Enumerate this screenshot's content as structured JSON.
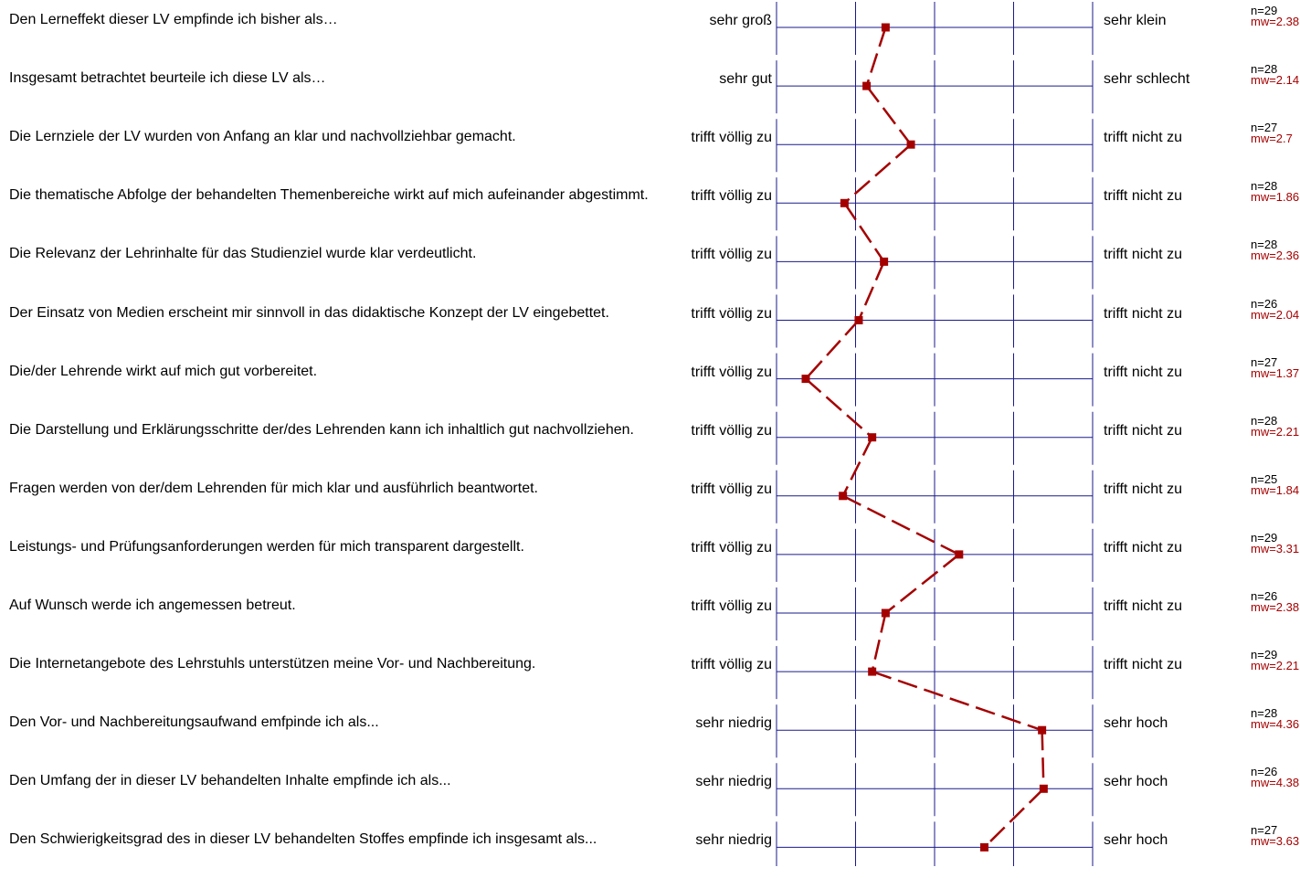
{
  "chart_data": {
    "type": "line",
    "scale": [
      1,
      5
    ],
    "line_color": "#a50000",
    "grid_color": "#1a1a8c",
    "items": [
      {
        "question": "Den Lerneffekt dieser LV empfinde ich bisher als…",
        "left": "sehr groß",
        "right": "sehr klein",
        "n": "n=29",
        "mw": "mw=2.38",
        "value": 2.38
      },
      {
        "question": "Insgesamt betrachtet beurteile ich diese LV als…",
        "left": "sehr gut",
        "right": "sehr schlecht",
        "n": "n=28",
        "mw": "mw=2.14",
        "value": 2.14
      },
      {
        "question": "Die Lernziele der LV wurden von Anfang an klar und nachvollziehbar gemacht.",
        "left": "trifft völlig zu",
        "right": "trifft nicht zu",
        "n": "n=27",
        "mw": "mw=2.7",
        "value": 2.7
      },
      {
        "question": "Die thematische Abfolge der behandelten Themenbereiche wirkt auf mich aufeinander abgestimmt.",
        "left": "trifft völlig zu",
        "right": "trifft nicht zu",
        "n": "n=28",
        "mw": "mw=1.86",
        "value": 1.86
      },
      {
        "question": "Die Relevanz der Lehrinhalte für das Studienziel wurde klar verdeutlicht.",
        "left": "trifft völlig zu",
        "right": "trifft nicht zu",
        "n": "n=28",
        "mw": "mw=2.36",
        "value": 2.36
      },
      {
        "question": "Der Einsatz von Medien erscheint mir sinnvoll in das didaktische Konzept der LV eingebettet.",
        "left": "trifft völlig zu",
        "right": "trifft nicht zu",
        "n": "n=26",
        "mw": "mw=2.04",
        "value": 2.04
      },
      {
        "question": "Die/der Lehrende wirkt auf mich gut vorbereitet.",
        "left": "trifft völlig zu",
        "right": "trifft nicht zu",
        "n": "n=27",
        "mw": "mw=1.37",
        "value": 1.37
      },
      {
        "question": "Die Darstellung und Erklärungsschritte der/des Lehrenden kann ich inhaltlich gut nachvollziehen.",
        "left": "trifft völlig zu",
        "right": "trifft nicht zu",
        "n": "n=28",
        "mw": "mw=2.21",
        "value": 2.21
      },
      {
        "question": "Fragen werden von der/dem Lehrenden für mich klar und ausführlich beantwortet.",
        "left": "trifft völlig zu",
        "right": "trifft nicht zu",
        "n": "n=25",
        "mw": "mw=1.84",
        "value": 1.84
      },
      {
        "question": "Leistungs- und Prüfungsanforderungen werden für mich transparent dargestellt.",
        "left": "trifft völlig zu",
        "right": "trifft nicht zu",
        "n": "n=29",
        "mw": "mw=3.31",
        "value": 3.31
      },
      {
        "question": "Auf Wunsch werde ich angemessen betreut.",
        "left": "trifft völlig zu",
        "right": "trifft nicht zu",
        "n": "n=26",
        "mw": "mw=2.38",
        "value": 2.38
      },
      {
        "question": "Die Internetangebote des Lehrstuhls unterstützen meine Vor- und Nachbereitung.",
        "left": "trifft völlig zu",
        "right": "trifft nicht zu",
        "n": "n=29",
        "mw": "mw=2.21",
        "value": 2.21
      },
      {
        "question": "Den Vor- und Nachbereitungsaufwand  emfpinde ich als...",
        "left": "sehr niedrig",
        "right": "sehr hoch",
        "n": "n=28",
        "mw": "mw=4.36",
        "value": 4.36
      },
      {
        "question": "Den Umfang der in dieser LV behandelten Inhalte empfinde ich als...",
        "left": "sehr niedrig",
        "right": "sehr hoch",
        "n": "n=26",
        "mw": "mw=4.38",
        "value": 4.38
      },
      {
        "question": "Den Schwierigkeitsgrad des in dieser LV behandelten Stoffes empfinde ich insgesamt als...",
        "left": "sehr niedrig",
        "right": "sehr hoch",
        "n": "n=27",
        "mw": "mw=3.63",
        "value": 3.63
      }
    ]
  }
}
